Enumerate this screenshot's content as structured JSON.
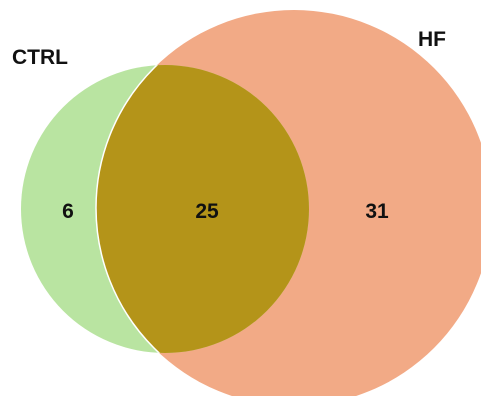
{
  "diagram": {
    "type": "venn",
    "sets": [
      {
        "label": "CTRL",
        "color": "#b9e4a1"
      },
      {
        "label": "HF",
        "color": "#f2aa86"
      }
    ],
    "intersection_color": "#b49419",
    "regions": {
      "ctrl_only": "6",
      "both": "25",
      "hf_only": "31"
    }
  }
}
